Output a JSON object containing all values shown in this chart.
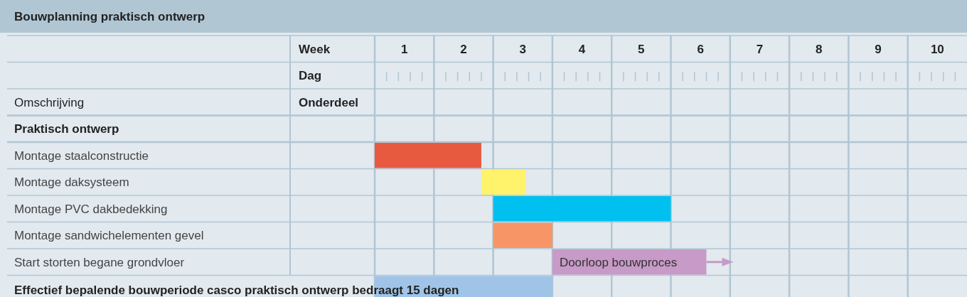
{
  "chart_data": {
    "type": "bar",
    "orientation": "horizontal",
    "title": "Bouwplanning praktisch ontwerp",
    "xlabel": "Week",
    "x2label": "Dag",
    "ylabel": "Omschrijving",
    "categories": [
      "Praktisch ontwerp",
      "Montage staalconstructie",
      "Montage daksysteem",
      "Montage PVC dakbedekking",
      "Montage sandwichelementen gevel",
      "Start storten begane grondvloer",
      "Effectief bepalende bouwperiode casco praktisch ontwerp bedraagt 15 dagen"
    ],
    "base": [
      null,
      0.5,
      2.3,
      2.5,
      2.5,
      3.5,
      0.5
    ],
    "values": [
      null,
      1.8,
      0.75,
      3,
      1,
      2.6,
      3
    ],
    "colors": [
      null,
      "#e85a40",
      "#fff36b",
      "#00c0f0",
      "#f79566",
      "#c79ac8",
      "#a0c4e8"
    ],
    "xlim": [
      0.5,
      10.5
    ],
    "xticks": [
      1,
      2,
      3,
      4,
      5,
      6,
      7,
      8,
      9,
      10
    ],
    "annotations": [
      "Onderdeel",
      {
        "text": "Doorloop bouwproces",
        "x": 3.5,
        "y": "Start storten begane grondvloer"
      }
    ]
  }
}
